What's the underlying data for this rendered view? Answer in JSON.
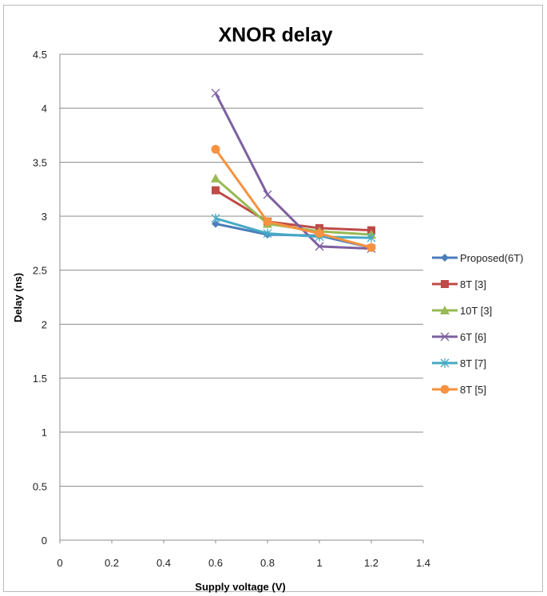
{
  "chart_data": {
    "type": "line",
    "title": "XNOR delay",
    "xlabel": "Supply voltage (V)",
    "ylabel": "Delay (ns)",
    "xlim": [
      0,
      1.4
    ],
    "ylim": [
      0,
      4.5
    ],
    "xticks": [
      "0",
      "0.2",
      "0.4",
      "0.6",
      "0.8",
      "1",
      "1.2",
      "1.4"
    ],
    "yticks": [
      "0",
      "0.5",
      "1",
      "1.5",
      "2",
      "2.5",
      "3",
      "3.5",
      "4",
      "4.5"
    ],
    "grid": "horizontal",
    "legend_position": "right",
    "x": [
      0.6,
      0.8,
      1.0,
      1.2
    ],
    "series": [
      {
        "name": "Proposed(6T)",
        "values": [
          2.93,
          2.83,
          2.82,
          2.71
        ],
        "color": "#4a7ebb",
        "marker": "diamond"
      },
      {
        "name": "8T [3]",
        "values": [
          3.24,
          2.95,
          2.89,
          2.87
        ],
        "color": "#be4b48",
        "marker": "square"
      },
      {
        "name": "10T [3]",
        "values": [
          3.35,
          2.93,
          2.86,
          2.83
        ],
        "color": "#98b954",
        "marker": "triangle"
      },
      {
        "name": "6T [6]",
        "values": [
          4.14,
          3.2,
          2.72,
          2.7
        ],
        "color": "#7d60a0",
        "marker": "x"
      },
      {
        "name": "8T [7]",
        "values": [
          2.98,
          2.84,
          2.81,
          2.8
        ],
        "color": "#46aac5",
        "marker": "star"
      },
      {
        "name": "8T [5]",
        "values": [
          3.62,
          2.95,
          2.84,
          2.71
        ],
        "color": "#f69240",
        "marker": "circle"
      }
    ]
  }
}
